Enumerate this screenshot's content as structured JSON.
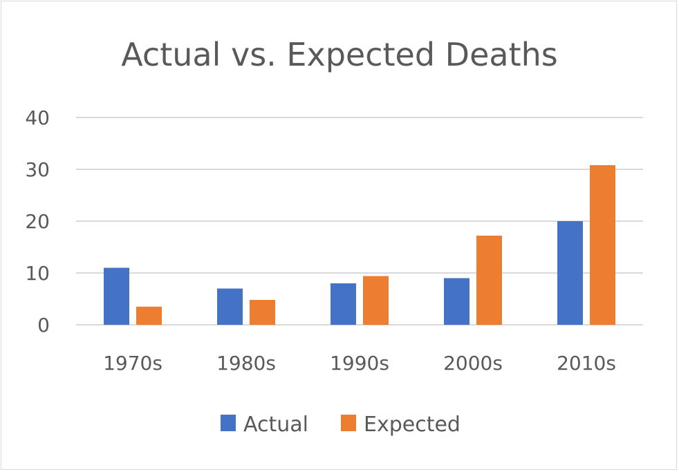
{
  "chart_data": {
    "type": "bar",
    "title": "Actual vs. Expected Deaths",
    "xlabel": "",
    "ylabel": "",
    "categories": [
      "1970s",
      "1980s",
      "1990s",
      "2000s",
      "2010s"
    ],
    "series": [
      {
        "name": "Actual",
        "color": "#4472c4",
        "values": [
          11,
          7,
          8,
          9,
          20
        ]
      },
      {
        "name": "Expected",
        "color": "#ed7d31",
        "values": [
          3.5,
          4.8,
          9.4,
          17.2,
          30.8
        ]
      }
    ],
    "ylim": [
      0,
      40
    ],
    "yticks": [
      "0",
      "10",
      "20",
      "30",
      "40"
    ],
    "grid": true,
    "legend_position": "bottom"
  }
}
